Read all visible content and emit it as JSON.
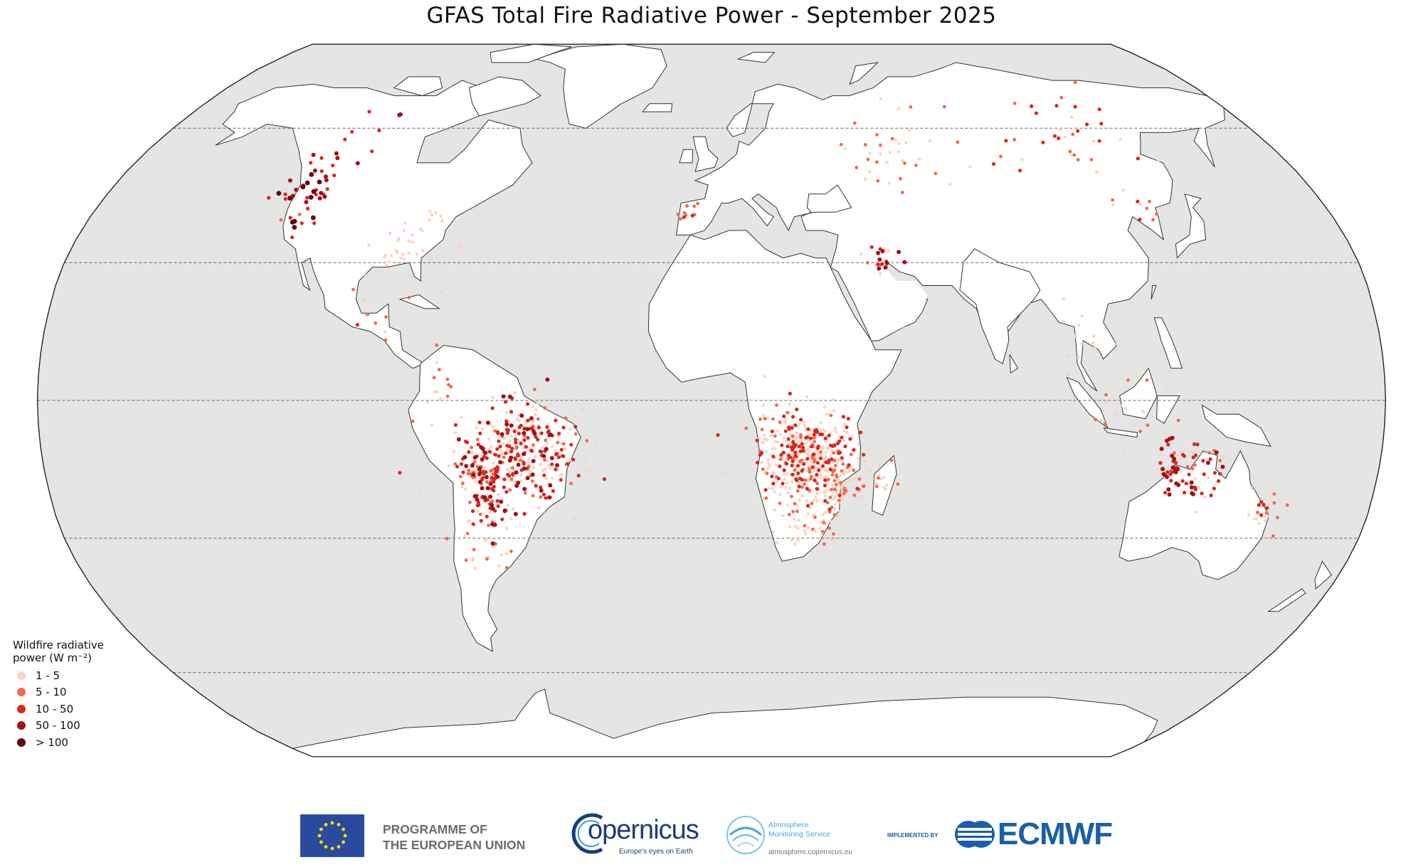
{
  "title": "GFAS Total Fire Radiative Power - September 2025",
  "legend": {
    "title_line1": "Wildfire radiative",
    "title_line2": "power (W m⁻²)",
    "items": [
      {
        "label": "1 - 5",
        "color": "#fbd3bf"
      },
      {
        "label": "5 - 10",
        "color": "#ef6a4c"
      },
      {
        "label": "10 - 50",
        "color": "#d7271f"
      },
      {
        "label": "50 - 100",
        "color": "#a50f15"
      },
      {
        "label": "> 100",
        "color": "#67000d"
      }
    ]
  },
  "map": {
    "projection": "Robinson",
    "ocean_color": "#e5e5e5",
    "land_color": "#ffffff",
    "graticule_latitudes": [
      -60,
      -30,
      0,
      30,
      60
    ]
  },
  "fire_clusters": [
    {
      "region": "Pacific Northwest",
      "lon": -121,
      "lat": 46,
      "spread": 5,
      "count": 28,
      "classes": [
        3,
        4,
        5
      ]
    },
    {
      "region": "Western Canada",
      "lon": -118,
      "lat": 56,
      "spread": 7,
      "count": 18,
      "classes": [
        3,
        4
      ]
    },
    {
      "region": "California",
      "lon": -120,
      "lat": 37,
      "spread": 3,
      "count": 8,
      "classes": [
        2,
        3,
        5
      ]
    },
    {
      "region": "Southeast USA",
      "lon": -86,
      "lat": 33,
      "spread": 6,
      "count": 40,
      "classes": [
        1
      ]
    },
    {
      "region": "Central America",
      "lon": -92,
      "lat": 17,
      "spread": 4,
      "count": 10,
      "classes": [
        1,
        2,
        3
      ]
    },
    {
      "region": "Amazon / Cerrado",
      "lon": -52,
      "lat": -11,
      "spread": 8,
      "count": 320,
      "classes": [
        1,
        1,
        1,
        2,
        3,
        3,
        4
      ]
    },
    {
      "region": "Bolivia",
      "lon": -63,
      "lat": -16,
      "spread": 4,
      "count": 80,
      "classes": [
        1,
        2,
        3,
        3,
        4
      ]
    },
    {
      "region": "Chaco / Paraguay",
      "lon": -61,
      "lat": -24,
      "spread": 3.5,
      "count": 45,
      "classes": [
        1,
        2,
        3,
        4
      ]
    },
    {
      "region": "Southern Africa",
      "lon": 25,
      "lat": -12,
      "spread": 7,
      "count": 420,
      "classes": [
        1,
        1,
        1,
        1,
        2,
        3,
        3
      ]
    },
    {
      "region": "Mozambique",
      "lon": 34,
      "lat": -18,
      "spread": 4,
      "count": 90,
      "classes": [
        1,
        1,
        2
      ]
    },
    {
      "region": "South Africa",
      "lon": 28,
      "lat": -27,
      "spread": 4,
      "count": 40,
      "classes": [
        1,
        2
      ]
    },
    {
      "region": "Northern Australia",
      "lon": 130,
      "lat": -15,
      "spread": 5,
      "count": 70,
      "classes": [
        1,
        2,
        3,
        3,
        4
      ]
    },
    {
      "region": "Kimberley coast",
      "lon": 124,
      "lat": -16,
      "spread": 1.2,
      "count": 10,
      "classes": [
        3,
        4
      ]
    },
    {
      "region": "Eastern Australia",
      "lon": 151,
      "lat": -25,
      "spread": 3,
      "count": 25,
      "classes": [
        1,
        2,
        3
      ]
    },
    {
      "region": "Central Siberia",
      "lon": 115,
      "lat": 59,
      "spread": 9,
      "count": 35,
      "classes": [
        1,
        2,
        3
      ]
    },
    {
      "region": "Kazakhstan / Russia",
      "lon": 60,
      "lat": 53,
      "spread": 10,
      "count": 40,
      "classes": [
        1,
        2
      ]
    },
    {
      "region": "Iraq / Gulf",
      "lon": 47,
      "lat": 31,
      "spread": 3,
      "count": 22,
      "classes": [
        1,
        2,
        3,
        4
      ]
    },
    {
      "region": "Iberia",
      "lon": -7,
      "lat": 41,
      "spread": 2,
      "count": 10,
      "classes": [
        2,
        3
      ]
    },
    {
      "region": "Southeast Asia",
      "lon": 105,
      "lat": 14,
      "spread": 6,
      "count": 20,
      "classes": [
        1
      ]
    },
    {
      "region": "Indonesia",
      "lon": 113,
      "lat": -3,
      "spread": 6,
      "count": 20,
      "classes": [
        1,
        2
      ]
    },
    {
      "region": "Northeast China",
      "lon": 125,
      "lat": 43,
      "spread": 4,
      "count": 10,
      "classes": [
        1,
        2,
        3
      ]
    },
    {
      "region": "Madagascar",
      "lon": 46,
      "lat": -18,
      "spread": 2.5,
      "count": 15,
      "classes": [
        1,
        2
      ]
    },
    {
      "region": "Colombia / Venezuela",
      "lon": -72,
      "lat": 5,
      "spread": 4,
      "count": 12,
      "classes": [
        1,
        2
      ]
    },
    {
      "region": "Argentina",
      "lon": -63,
      "lat": -33,
      "spread": 4,
      "count": 20,
      "classes": [
        1,
        2
      ]
    }
  ],
  "logos": {
    "eu_line1": "PROGRAMME OF",
    "eu_line2": "THE EUROPEAN UNION",
    "copernicus": "opernicus",
    "copernicus_tagline": "Europe's eyes on Earth",
    "cams_line1": "Atmosphere",
    "cams_line2": "Monitoring Service",
    "cams_url": "atmosphere.copernicus.eu",
    "implemented_by": "IMPLEMENTED BY",
    "ecmwf": "ECMWF"
  }
}
